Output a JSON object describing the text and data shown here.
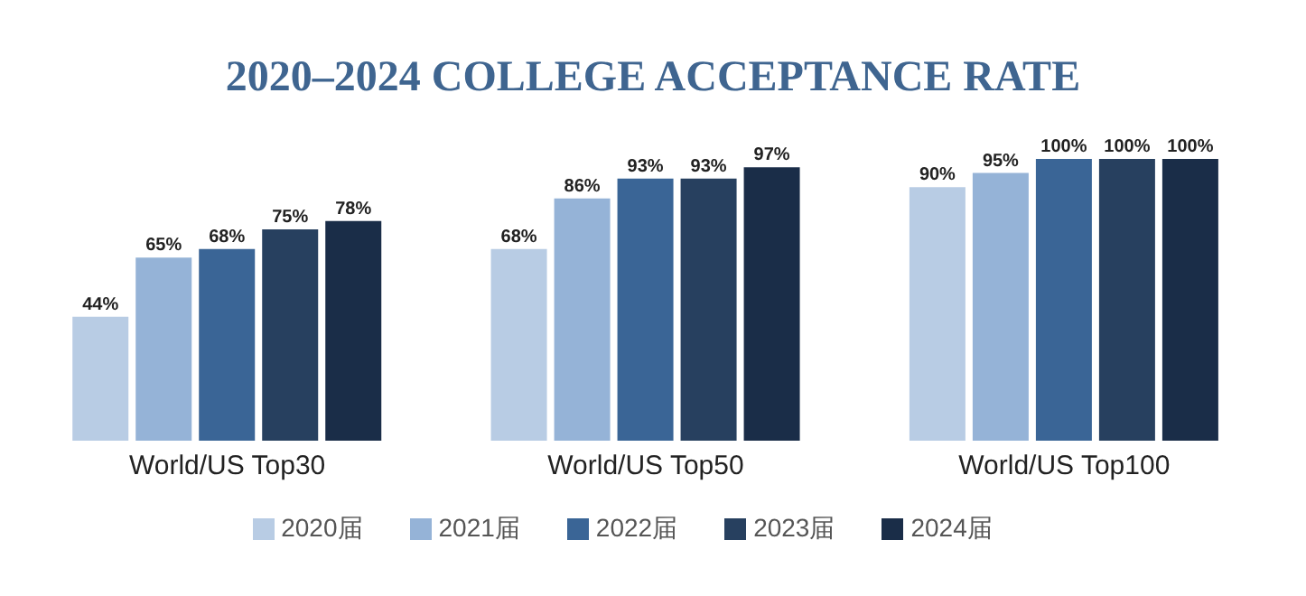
{
  "chart_data": {
    "type": "bar",
    "title": "2020–2024 COLLEGE ACCEPTANCE RATE",
    "categories": [
      "World/US Top30",
      "World/US Top50",
      "World/US Top100"
    ],
    "series": [
      {
        "name": "2020届",
        "color": "#b8cce4",
        "values": [
          44,
          68,
          90
        ],
        "value_labels": [
          "44%",
          "68%",
          "90%"
        ]
      },
      {
        "name": "2021届",
        "color": "#95b3d7",
        "values": [
          65,
          86,
          95
        ],
        "value_labels": [
          "65%",
          "86%",
          "95%"
        ]
      },
      {
        "name": "2022届",
        "color": "#3a6596",
        "values": [
          68,
          93,
          100
        ],
        "value_labels": [
          "68%",
          "93%",
          "100%"
        ]
      },
      {
        "name": "2023届",
        "color": "#27405f",
        "values": [
          75,
          93,
          100
        ],
        "value_labels": [
          "75%",
          "93%",
          "100%"
        ]
      },
      {
        "name": "2024届",
        "color": "#1a2d48",
        "values": [
          78,
          97,
          100
        ],
        "value_labels": [
          "78%",
          "97%",
          "100%"
        ]
      }
    ],
    "legend": "bottom",
    "grid": false
  }
}
